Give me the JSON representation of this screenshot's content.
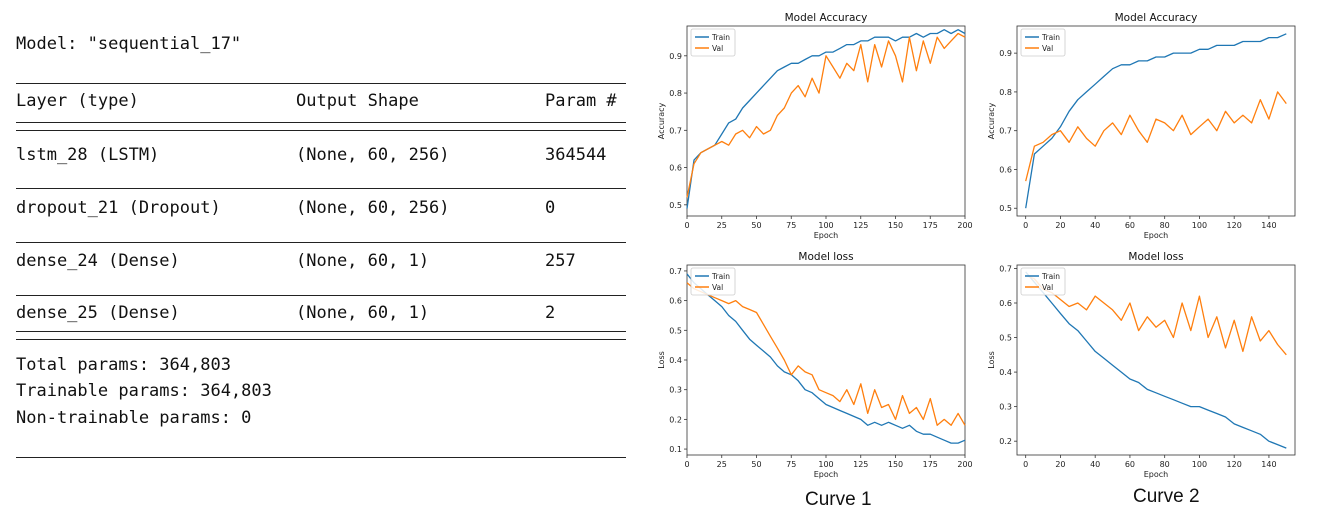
{
  "summary": {
    "title": "Model: \"sequential_17\"",
    "headers": {
      "layer": "Layer (type)",
      "shape": "Output Shape",
      "params": "Param #"
    },
    "rows": [
      {
        "layer": "lstm_28 (LSTM)",
        "shape": "(None, 60, 256)",
        "params": "364544"
      },
      {
        "layer": "dropout_21 (Dropout)",
        "shape": "(None, 60, 256)",
        "params": "0"
      },
      {
        "layer": "dense_24 (Dense)",
        "shape": "(None, 60, 1)",
        "params": "257"
      },
      {
        "layer": "dense_25 (Dense)",
        "shape": "(None, 60, 1)",
        "params": "2"
      }
    ],
    "total": "Total params: 364,803",
    "trainable": "Trainable params: 364,803",
    "non_trainable": "Non-trainable params: 0"
  },
  "captions": {
    "curve1": "Curve 1",
    "curve2": "Curve 2"
  },
  "colors": {
    "train": "#1f77b4",
    "val": "#ff7f0e"
  },
  "chart_data": [
    {
      "id": "acc1",
      "type": "line",
      "title": "Model Accuracy",
      "xlabel": "Epoch",
      "ylabel": "Accuracy",
      "xlim": [
        0,
        200
      ],
      "ylim": [
        0.47,
        0.98
      ],
      "xticks": [
        0,
        25,
        50,
        75,
        100,
        125,
        150,
        175,
        200
      ],
      "yticks": [
        0.5,
        0.6,
        0.7,
        0.8,
        0.9
      ],
      "ytick_labels": [
        "0.5",
        "0.6",
        "0.7",
        "0.8",
        "0.9"
      ],
      "legend": "top-left",
      "series": [
        {
          "name": "Train",
          "x": [
            0,
            5,
            10,
            15,
            20,
            25,
            30,
            35,
            40,
            45,
            50,
            55,
            60,
            65,
            70,
            75,
            80,
            85,
            90,
            95,
            100,
            105,
            110,
            115,
            120,
            125,
            130,
            135,
            140,
            145,
            150,
            155,
            160,
            165,
            170,
            175,
            180,
            185,
            190,
            195,
            200
          ],
          "values": [
            0.49,
            0.62,
            0.64,
            0.65,
            0.66,
            0.69,
            0.72,
            0.73,
            0.76,
            0.78,
            0.8,
            0.82,
            0.84,
            0.86,
            0.87,
            0.88,
            0.88,
            0.89,
            0.9,
            0.9,
            0.91,
            0.91,
            0.92,
            0.93,
            0.93,
            0.94,
            0.94,
            0.95,
            0.95,
            0.95,
            0.94,
            0.95,
            0.95,
            0.96,
            0.95,
            0.96,
            0.96,
            0.97,
            0.96,
            0.97,
            0.96
          ]
        },
        {
          "name": "Val",
          "x": [
            0,
            5,
            10,
            15,
            20,
            25,
            30,
            35,
            40,
            45,
            50,
            55,
            60,
            65,
            70,
            75,
            80,
            85,
            90,
            95,
            100,
            105,
            110,
            115,
            120,
            125,
            130,
            135,
            140,
            145,
            150,
            155,
            160,
            165,
            170,
            175,
            180,
            185,
            190,
            195,
            200
          ],
          "values": [
            0.52,
            0.61,
            0.64,
            0.65,
            0.66,
            0.67,
            0.66,
            0.69,
            0.7,
            0.68,
            0.71,
            0.69,
            0.7,
            0.74,
            0.76,
            0.8,
            0.82,
            0.79,
            0.84,
            0.8,
            0.9,
            0.87,
            0.84,
            0.88,
            0.86,
            0.93,
            0.83,
            0.93,
            0.87,
            0.94,
            0.9,
            0.83,
            0.95,
            0.86,
            0.94,
            0.88,
            0.95,
            0.92,
            0.94,
            0.96,
            0.95
          ]
        }
      ]
    },
    {
      "id": "acc2",
      "type": "line",
      "title": "Model Accuracy",
      "xlabel": "Epoch",
      "ylabel": "Accuracy",
      "xlim": [
        -5,
        155
      ],
      "ylim": [
        0.48,
        0.97
      ],
      "xticks": [
        0,
        20,
        40,
        60,
        80,
        100,
        120,
        140
      ],
      "yticks": [
        0.5,
        0.6,
        0.7,
        0.8,
        0.9
      ],
      "ytick_labels": [
        "0.5",
        "0.6",
        "0.7",
        "0.8",
        "0.9"
      ],
      "legend": "top-left",
      "series": [
        {
          "name": "Train",
          "x": [
            0,
            5,
            10,
            15,
            20,
            25,
            30,
            35,
            40,
            45,
            50,
            55,
            60,
            65,
            70,
            75,
            80,
            85,
            90,
            95,
            100,
            105,
            110,
            115,
            120,
            125,
            130,
            135,
            140,
            145,
            150
          ],
          "values": [
            0.5,
            0.64,
            0.66,
            0.68,
            0.71,
            0.75,
            0.78,
            0.8,
            0.82,
            0.84,
            0.86,
            0.87,
            0.87,
            0.88,
            0.88,
            0.89,
            0.89,
            0.9,
            0.9,
            0.9,
            0.91,
            0.91,
            0.92,
            0.92,
            0.92,
            0.93,
            0.93,
            0.93,
            0.94,
            0.94,
            0.95
          ]
        },
        {
          "name": "Val",
          "x": [
            0,
            5,
            10,
            15,
            20,
            25,
            30,
            35,
            40,
            45,
            50,
            55,
            60,
            65,
            70,
            75,
            80,
            85,
            90,
            95,
            100,
            105,
            110,
            115,
            120,
            125,
            130,
            135,
            140,
            145,
            150
          ],
          "values": [
            0.57,
            0.66,
            0.67,
            0.69,
            0.7,
            0.67,
            0.71,
            0.68,
            0.66,
            0.7,
            0.72,
            0.69,
            0.74,
            0.7,
            0.67,
            0.73,
            0.72,
            0.7,
            0.74,
            0.69,
            0.71,
            0.73,
            0.7,
            0.75,
            0.72,
            0.74,
            0.72,
            0.78,
            0.73,
            0.8,
            0.77
          ]
        }
      ]
    },
    {
      "id": "loss1",
      "type": "line",
      "title": "Model loss",
      "xlabel": "Epoch",
      "ylabel": "Loss",
      "xlim": [
        0,
        200
      ],
      "ylim": [
        0.08,
        0.72
      ],
      "xticks": [
        0,
        25,
        50,
        75,
        100,
        125,
        150,
        175,
        200
      ],
      "yticks": [
        0.1,
        0.2,
        0.3,
        0.4,
        0.5,
        0.6,
        0.7
      ],
      "ytick_labels": [
        "0.1",
        "0.2",
        "0.3",
        "0.4",
        "0.5",
        "0.6",
        "0.7"
      ],
      "legend": "top-left",
      "series": [
        {
          "name": "Train",
          "x": [
            0,
            5,
            10,
            15,
            20,
            25,
            30,
            35,
            40,
            45,
            50,
            55,
            60,
            65,
            70,
            75,
            80,
            85,
            90,
            95,
            100,
            105,
            110,
            115,
            120,
            125,
            130,
            135,
            140,
            145,
            150,
            155,
            160,
            165,
            170,
            175,
            180,
            185,
            190,
            195,
            200
          ],
          "values": [
            0.69,
            0.66,
            0.64,
            0.62,
            0.6,
            0.58,
            0.55,
            0.53,
            0.5,
            0.47,
            0.45,
            0.43,
            0.41,
            0.38,
            0.36,
            0.35,
            0.33,
            0.3,
            0.29,
            0.27,
            0.25,
            0.24,
            0.23,
            0.22,
            0.21,
            0.2,
            0.18,
            0.19,
            0.18,
            0.19,
            0.18,
            0.17,
            0.18,
            0.16,
            0.15,
            0.15,
            0.14,
            0.13,
            0.12,
            0.12,
            0.13
          ]
        },
        {
          "name": "Val",
          "x": [
            0,
            5,
            10,
            15,
            20,
            25,
            30,
            35,
            40,
            45,
            50,
            55,
            60,
            65,
            70,
            75,
            80,
            85,
            90,
            95,
            100,
            105,
            110,
            115,
            120,
            125,
            130,
            135,
            140,
            145,
            150,
            155,
            160,
            165,
            170,
            175,
            180,
            185,
            190,
            195,
            200
          ],
          "values": [
            0.66,
            0.64,
            0.63,
            0.62,
            0.61,
            0.6,
            0.59,
            0.6,
            0.58,
            0.57,
            0.56,
            0.52,
            0.48,
            0.44,
            0.4,
            0.35,
            0.38,
            0.36,
            0.35,
            0.3,
            0.29,
            0.28,
            0.26,
            0.3,
            0.25,
            0.32,
            0.22,
            0.3,
            0.24,
            0.25,
            0.2,
            0.28,
            0.22,
            0.24,
            0.2,
            0.27,
            0.18,
            0.2,
            0.18,
            0.22,
            0.18
          ]
        }
      ]
    },
    {
      "id": "loss2",
      "type": "line",
      "title": "Model loss",
      "xlabel": "Epoch",
      "ylabel": "Loss",
      "xlim": [
        -5,
        155
      ],
      "ylim": [
        0.16,
        0.71
      ],
      "xticks": [
        0,
        20,
        40,
        60,
        80,
        100,
        120,
        140
      ],
      "yticks": [
        0.2,
        0.3,
        0.4,
        0.5,
        0.6,
        0.7
      ],
      "ytick_labels": [
        "0.2",
        "0.3",
        "0.4",
        "0.5",
        "0.6",
        "0.7"
      ],
      "legend": "top-left",
      "series": [
        {
          "name": "Train",
          "x": [
            0,
            5,
            10,
            15,
            20,
            25,
            30,
            35,
            40,
            45,
            50,
            55,
            60,
            65,
            70,
            75,
            80,
            85,
            90,
            95,
            100,
            105,
            110,
            115,
            120,
            125,
            130,
            135,
            140,
            145,
            150
          ],
          "values": [
            0.69,
            0.66,
            0.63,
            0.6,
            0.57,
            0.54,
            0.52,
            0.49,
            0.46,
            0.44,
            0.42,
            0.4,
            0.38,
            0.37,
            0.35,
            0.34,
            0.33,
            0.32,
            0.31,
            0.3,
            0.3,
            0.29,
            0.28,
            0.27,
            0.25,
            0.24,
            0.23,
            0.22,
            0.2,
            0.19,
            0.18
          ]
        },
        {
          "name": "Val",
          "x": [
            0,
            5,
            10,
            15,
            20,
            25,
            30,
            35,
            40,
            45,
            50,
            55,
            60,
            65,
            70,
            75,
            80,
            85,
            90,
            95,
            100,
            105,
            110,
            115,
            120,
            125,
            130,
            135,
            140,
            145,
            150
          ],
          "values": [
            0.68,
            0.67,
            0.64,
            0.63,
            0.61,
            0.59,
            0.6,
            0.58,
            0.62,
            0.6,
            0.58,
            0.55,
            0.6,
            0.52,
            0.56,
            0.53,
            0.55,
            0.5,
            0.6,
            0.52,
            0.62,
            0.5,
            0.56,
            0.47,
            0.55,
            0.46,
            0.56,
            0.49,
            0.52,
            0.48,
            0.45
          ]
        }
      ]
    }
  ]
}
